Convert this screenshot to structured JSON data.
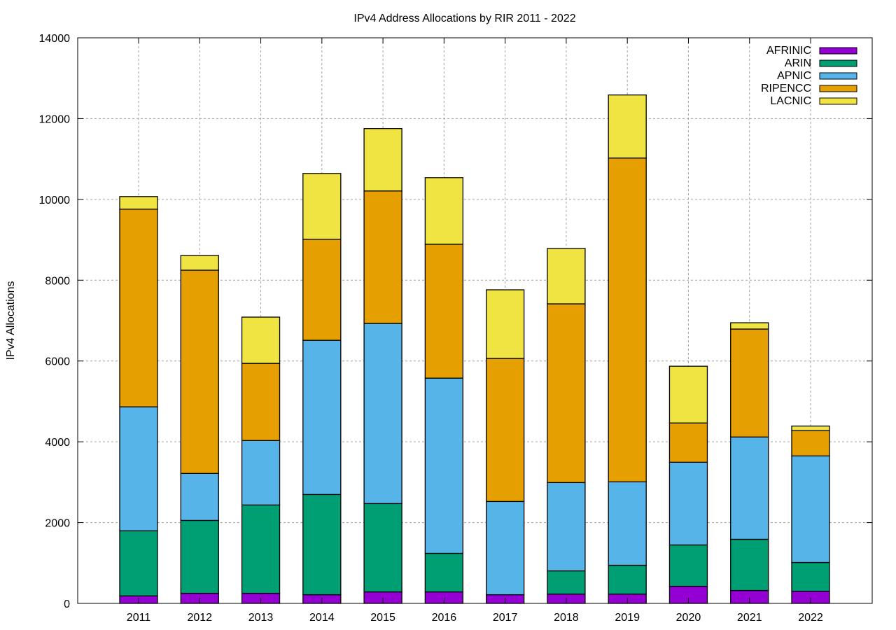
{
  "chart_data": {
    "type": "bar",
    "stacked": true,
    "title": "IPv4 Address Allocations by RIR 2011 - 2022",
    "xlabel": "",
    "ylabel": "IPv4 Allocations",
    "ylim": [
      0,
      14000
    ],
    "yticks": [
      0,
      2000,
      4000,
      6000,
      8000,
      10000,
      12000,
      14000
    ],
    "grid": true,
    "legend_position": "top-right",
    "categories": [
      "2011",
      "2012",
      "2013",
      "2014",
      "2015",
      "2016",
      "2017",
      "2018",
      "2019",
      "2020",
      "2021",
      "2022"
    ],
    "series": [
      {
        "name": "AFRINIC",
        "color": "#9400d3",
        "values": [
          185,
          250,
          250,
          215,
          285,
          285,
          215,
          232,
          232,
          423,
          319,
          302
        ]
      },
      {
        "name": "ARIN",
        "color": "#009e73",
        "values": [
          1612,
          1804,
          2186,
          2481,
          2186,
          954,
          0,
          573,
          712,
          1024,
          1267,
          711
        ]
      },
      {
        "name": "APNIC",
        "color": "#56b4e9",
        "values": [
          3068,
          1163,
          1596,
          3817,
          4459,
          4337,
          2308,
          2186,
          2065,
          2047,
          2533,
          2637
        ]
      },
      {
        "name": "RIPENCC",
        "color": "#e69f00",
        "values": [
          4893,
          5031,
          1909,
          2499,
          3279,
          3314,
          3539,
          4424,
          8015,
          972,
          2672,
          625
        ]
      },
      {
        "name": "LACNIC",
        "color": "#f0e442",
        "values": [
          312,
          364,
          1145,
          1630,
          1544,
          1648,
          1700,
          1371,
          1561,
          1405,
          156,
          115
        ]
      }
    ]
  }
}
